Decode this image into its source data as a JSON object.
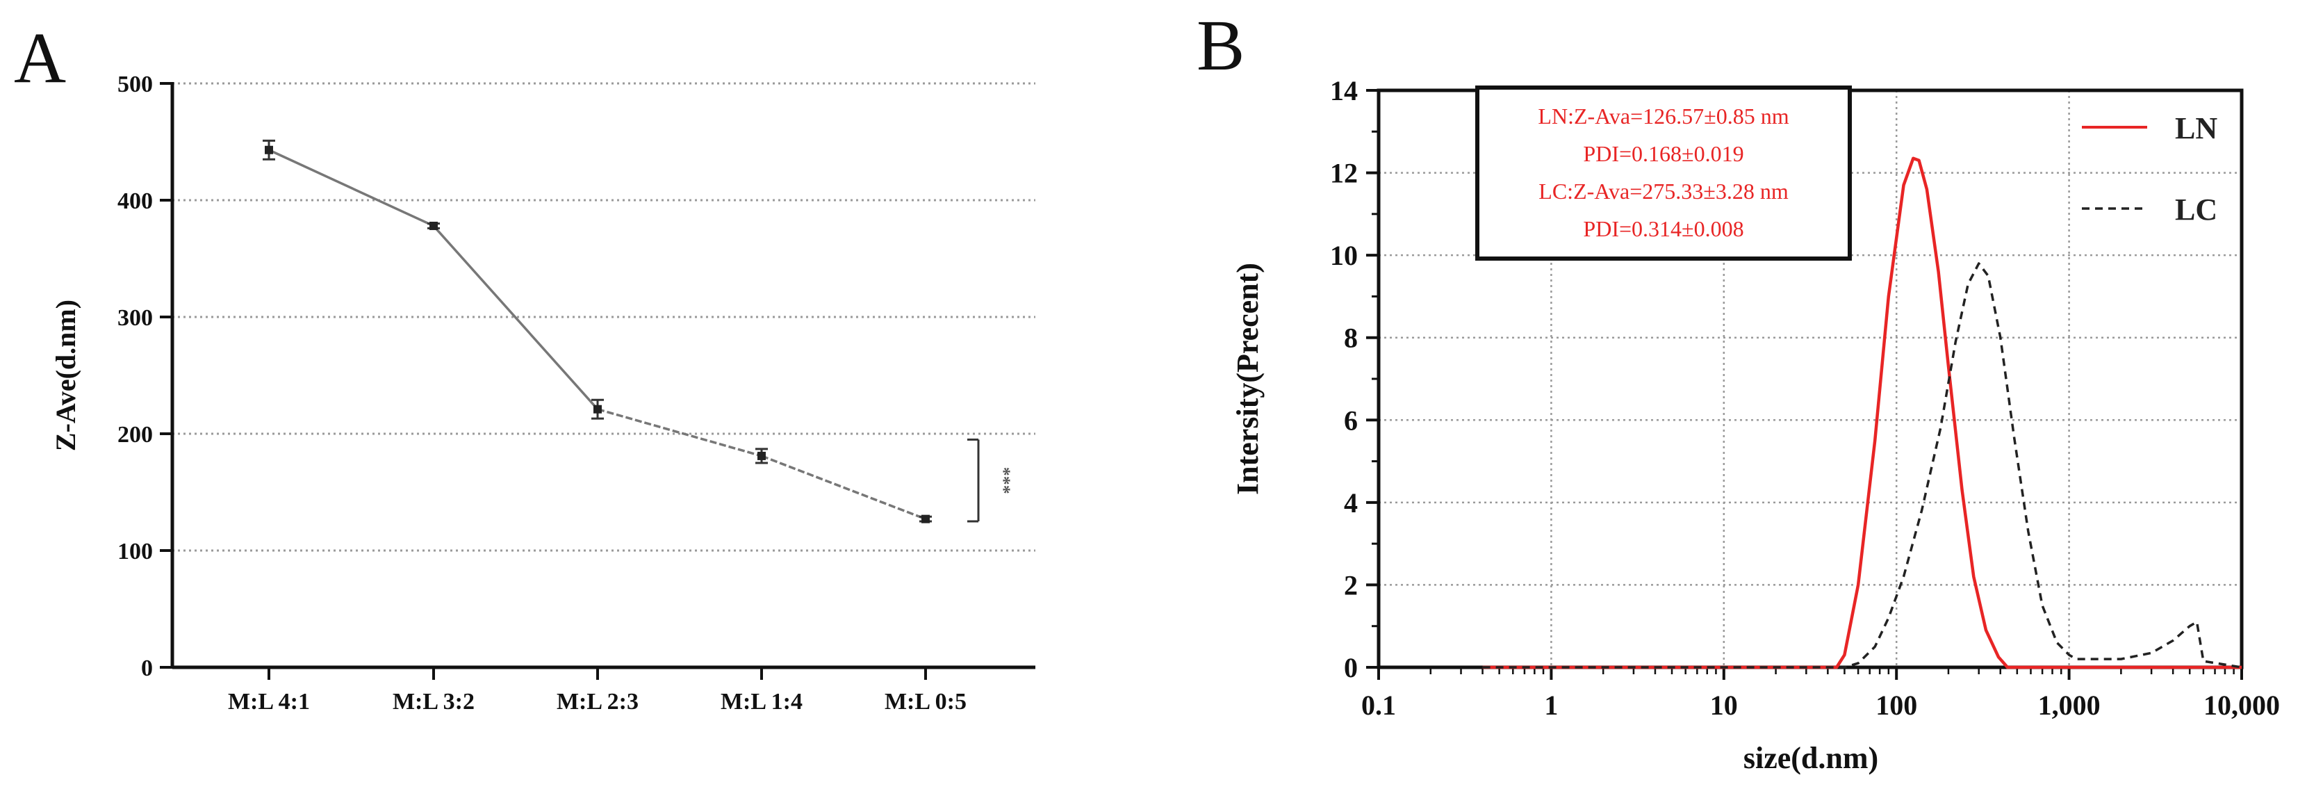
{
  "figure": {
    "panel_a_letter": "A",
    "panel_b_letter": "B"
  },
  "colors": {
    "ln": "#e82525",
    "lc": "#222222",
    "axis": "#111111",
    "grid": "#9a9a9a",
    "a_line": "#777777"
  },
  "chart_data": [
    {
      "type": "line",
      "panel": "A",
      "categories": [
        "M:L 4:1",
        "M:L 3:2",
        "M:L 2:3",
        "M:L 1:4",
        "M:L 0:5"
      ],
      "values": [
        443,
        378,
        221,
        181,
        127
      ],
      "errors": [
        8,
        2,
        8,
        6,
        2
      ],
      "ylabel": "Z-Ave(d.nm)",
      "xlabel": "",
      "ylim": [
        0,
        500
      ],
      "yticks": [
        "0",
        "100",
        "200",
        "300",
        "400",
        "500"
      ],
      "grid": "horizontal dotted",
      "significance": {
        "label": "***",
        "from_category": "M:L 0:5",
        "range": [
          125,
          195
        ]
      }
    },
    {
      "type": "line",
      "panel": "B",
      "xscale": "log",
      "xlim": [
        0.1,
        10000
      ],
      "xticks": [
        "0.1",
        "1",
        "10",
        "100",
        "1,000",
        "10,000"
      ],
      "ylim": [
        0,
        14
      ],
      "yticks": [
        "0",
        "2",
        "4",
        "6",
        "8",
        "10",
        "12",
        "14"
      ],
      "xlabel": "size(d.nm)",
      "ylabel": "Intersity(Precent)",
      "grid": "dotted both",
      "legend": {
        "position": "top-right",
        "entries": [
          "LN",
          "LC"
        ]
      },
      "annotation": [
        "LN:Z-Ava=126.57±0.85 nm",
        "PDI=0.168±0.019",
        "LC:Z-Ava=275.33±3.28 nm",
        "PDI=0.314±0.008"
      ],
      "series": [
        {
          "name": "LN",
          "style": "solid",
          "x": [
            0.4,
            45,
            50,
            60,
            75,
            90,
            110,
            125,
            135,
            150,
            175,
            200,
            240,
            280,
            330,
            390,
            440,
            1000,
            10000
          ],
          "y": [
            0,
            0,
            0.3,
            2.0,
            5.5,
            9.0,
            11.7,
            12.35,
            12.3,
            11.6,
            9.6,
            7.3,
            4.3,
            2.2,
            0.9,
            0.25,
            0,
            0,
            0
          ]
        },
        {
          "name": "LC",
          "style": "dashed",
          "x": [
            0.4,
            50,
            60,
            75,
            90,
            110,
            140,
            180,
            220,
            260,
            300,
            340,
            400,
            480,
            580,
            700,
            850,
            1000,
            1100,
            2000,
            3000,
            4000,
            5000,
            5500,
            6000,
            10000
          ],
          "y": [
            0,
            0,
            0.1,
            0.5,
            1.2,
            2.2,
            3.8,
            5.8,
            7.9,
            9.3,
            9.8,
            9.5,
            8.0,
            5.6,
            3.3,
            1.5,
            0.6,
            0.3,
            0.2,
            0.2,
            0.35,
            0.65,
            1.0,
            1.1,
            0.15,
            0
          ]
        }
      ]
    }
  ]
}
